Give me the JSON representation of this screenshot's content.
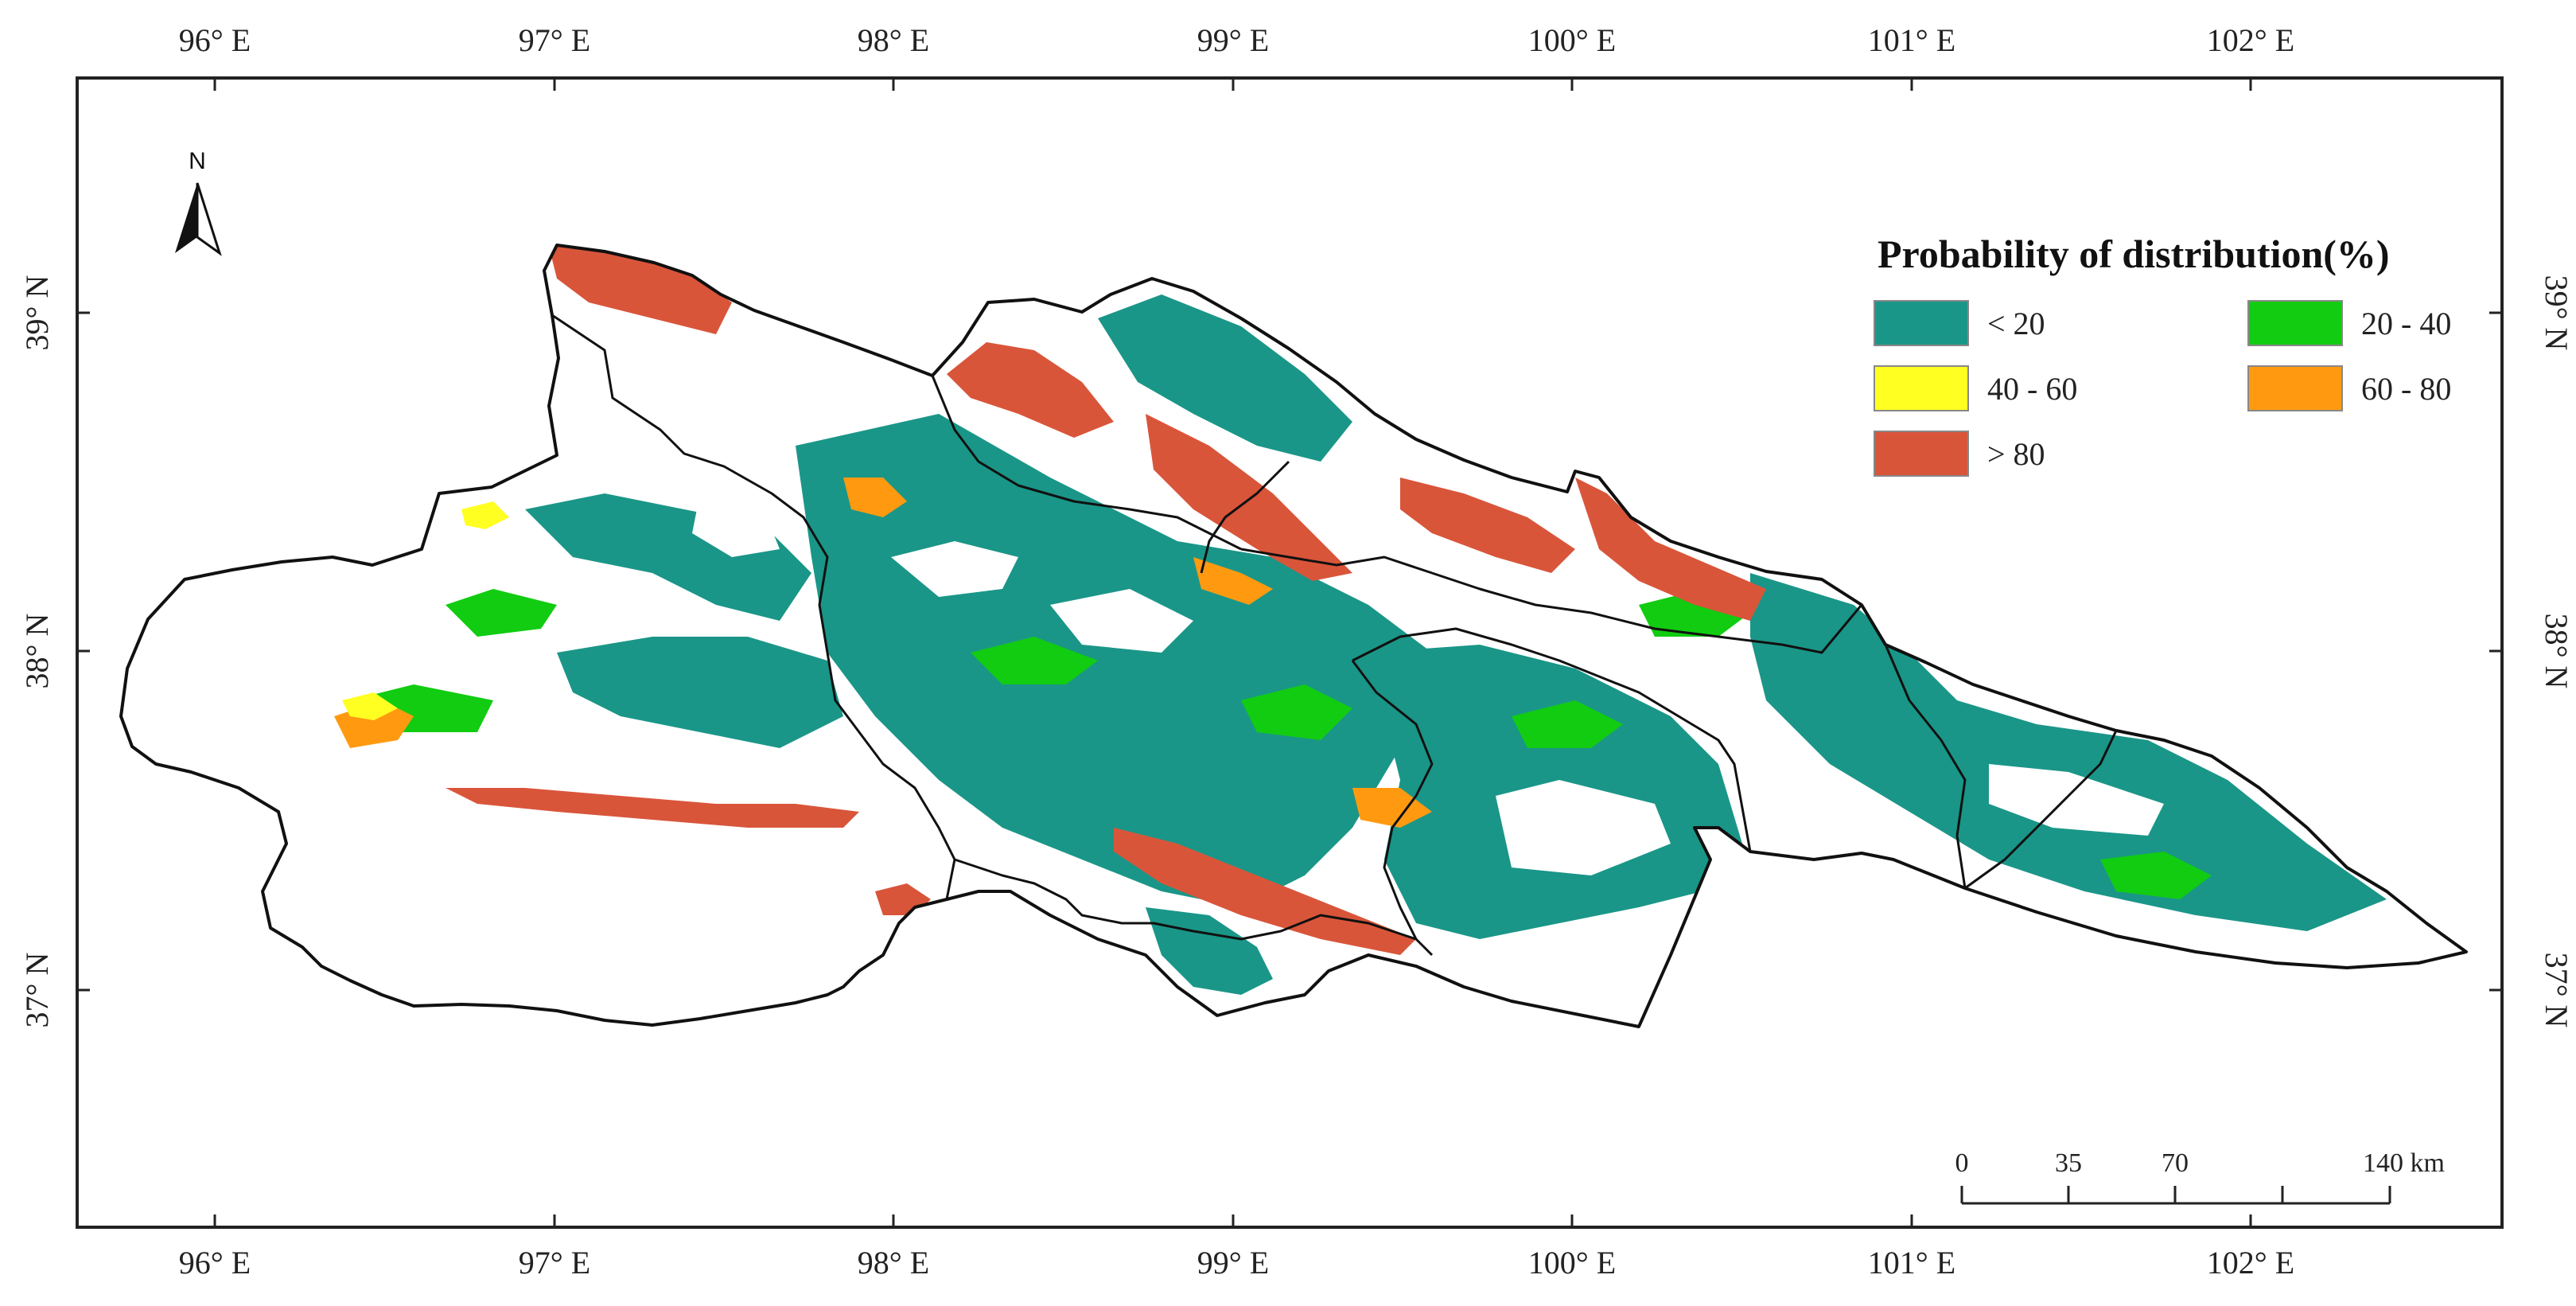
{
  "map": {
    "longitudes": [
      "96° E",
      "97° E",
      "98° E",
      "99° E",
      "100° E",
      "101° E",
      "102° E"
    ],
    "latitudes": [
      "39° N",
      "38° N",
      "37° N"
    ]
  },
  "legend": {
    "title": "Probability of distribution(%)",
    "classes": [
      {
        "label": "< 20",
        "color": "#1a9688"
      },
      {
        "label": "20 - 40",
        "color": "#11cc11"
      },
      {
        "label": "40 - 60",
        "color": "#ffff22"
      },
      {
        "label": "60 - 80",
        "color": "#ff9a10"
      },
      {
        "label": "> 80",
        "color": "#d9553a"
      }
    ]
  },
  "north_arrow": {
    "label": "N"
  },
  "scale_bar": {
    "labels": [
      "0",
      "35",
      "70",
      "140 km"
    ]
  },
  "colors": {
    "boundary": "#111111",
    "background": "#ffffff"
  }
}
